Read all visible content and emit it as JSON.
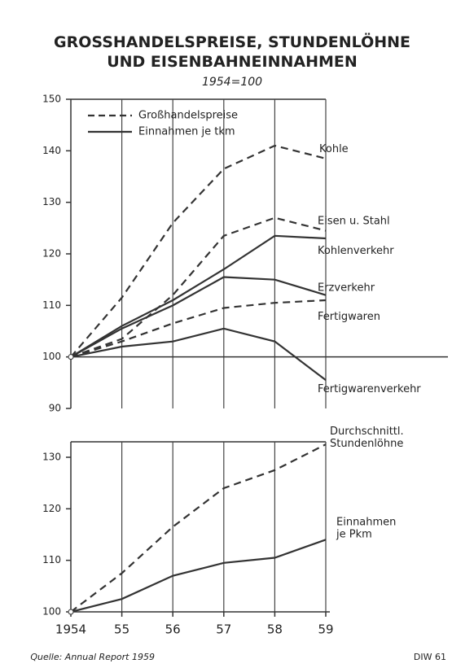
{
  "chart_data": [
    {
      "type": "line",
      "title": "GROSSHANDELSPREISE, STUNDENLÖHNE\nUND EISENBAHNEINNAHMEN",
      "subtitle": "1954=100",
      "ylim": [
        90,
        150
      ],
      "yticks": [
        90,
        100,
        110,
        120,
        130,
        140,
        150
      ],
      "legend": [
        {
          "label": "Großhandelspreise",
          "dashed": true
        },
        {
          "label": "Einnahmen je tkm",
          "dashed": false
        }
      ],
      "series": [
        {
          "name": "Kohle",
          "dashed": true,
          "color": "#333",
          "values": [
            100,
            111.5,
            126,
            136.5,
            141,
            138.5
          ]
        },
        {
          "name": "Eisen u. Stahl",
          "dashed": true,
          "color": "#333",
          "values": [
            100,
            103.5,
            112,
            123.5,
            127,
            124.5
          ]
        },
        {
          "name": "Kohlenverkehr",
          "dashed": false,
          "color": "#333",
          "values": [
            100,
            106,
            111,
            117,
            123.5,
            123
          ]
        },
        {
          "name": "Erzverkehr",
          "dashed": false,
          "color": "#333",
          "values": [
            100,
            105.5,
            110,
            115.5,
            115,
            112
          ]
        },
        {
          "name": "Fertigwaren",
          "dashed": true,
          "color": "#333",
          "values": [
            100,
            103,
            106.5,
            109.5,
            110.5,
            111
          ]
        },
        {
          "name": "Fertigwarenverkehr",
          "dashed": false,
          "color": "#333",
          "values": [
            100,
            102,
            103,
            105.5,
            103,
            95.5
          ]
        }
      ]
    },
    {
      "type": "line",
      "categories": [
        "1954",
        "55",
        "56",
        "57",
        "58",
        "59"
      ],
      "ylim": [
        100,
        133
      ],
      "yticks": [
        100,
        110,
        120,
        130
      ],
      "series": [
        {
          "name": "Durchschnittl.\nStundenlöhne",
          "dashed": true,
          "color": "#333",
          "values": [
            100,
            107.5,
            116.5,
            124,
            127.5,
            132.5
          ]
        },
        {
          "name": "Einnahmen\nje Pkm",
          "dashed": false,
          "color": "#333",
          "values": [
            100,
            102.5,
            107,
            109.5,
            110.5,
            114
          ]
        }
      ]
    }
  ],
  "source": "Quelle: Annual Report 1959",
  "code": "DIW 61"
}
